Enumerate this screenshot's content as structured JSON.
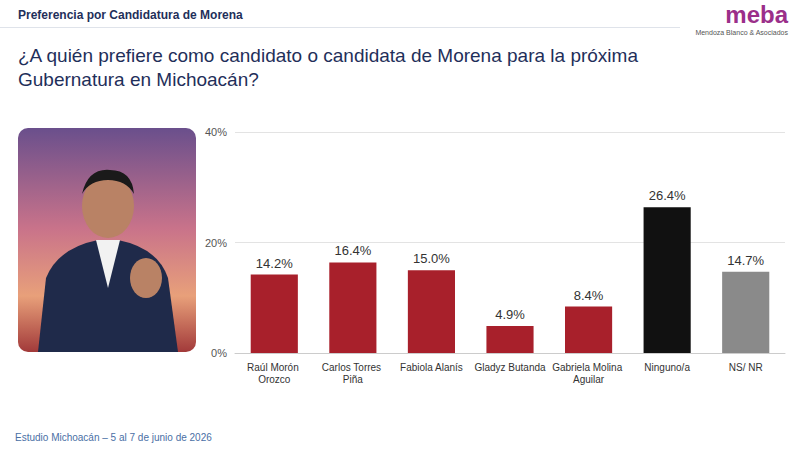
{
  "header": "Preferencia por Candidatura de Morena",
  "logo": {
    "name": "meba",
    "tagline": "Mendoza Blanco & Asociados"
  },
  "footer": "Estudio Michoacán – 5 al 7 de junio de 2026",
  "chart_data": {
    "type": "bar",
    "title": "¿A quién prefiere como candidato o candidata de Morena para la próxima Gubernatura en Michoacán?",
    "categories": [
      "Raúl Morón Orozco",
      "Carlos Torres Piña",
      "Fabiola Alanís",
      "Gladyz Butanda",
      "Gabriela Molina Aguilar",
      "Ninguno/a",
      "NS/ NR"
    ],
    "values": [
      14.2,
      16.4,
      15.0,
      4.9,
      8.4,
      26.4,
      14.7
    ],
    "value_labels": [
      "14.2%",
      "16.4%",
      "15.0%",
      "4.9%",
      "8.4%",
      "26.4%",
      "14.7%"
    ],
    "colors": [
      "#a8202b",
      "#a8202b",
      "#a8202b",
      "#a8202b",
      "#a8202b",
      "#111111",
      "#8a8a8a"
    ],
    "ylim": [
      0,
      40
    ],
    "yticks": [
      {
        "value": 0,
        "label": "0%"
      },
      {
        "value": 20,
        "label": "20%"
      },
      {
        "value": 40,
        "label": "40%"
      }
    ],
    "grid": true,
    "data_labels": true
  }
}
